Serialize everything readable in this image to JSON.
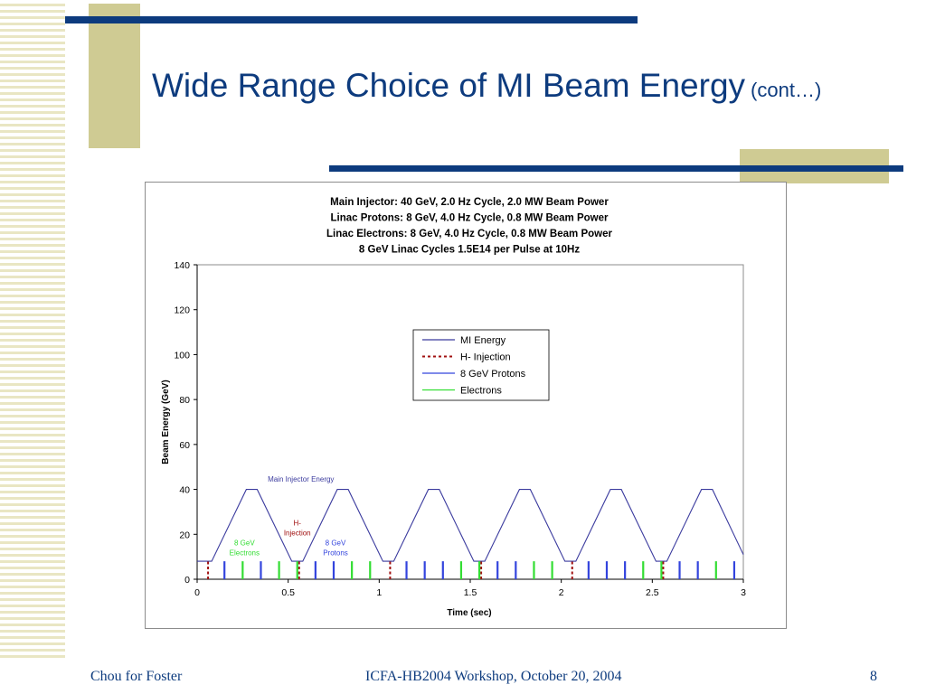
{
  "slide": {
    "title": "Wide Range Choice of MI Beam Energy",
    "title_suffix": "(cont…)",
    "footer_left": "Chou for Foster",
    "footer_center": "ICFA-HB2004 Workshop, October 20, 2004",
    "page_number": "8",
    "colors": {
      "title": "#0d3b7e",
      "accent_bar": "#0d3b7e",
      "accent_block": "#cfcb93",
      "stripes": "#e9e6c3"
    }
  },
  "chart_data": {
    "type": "line",
    "title_lines": [
      "Main  Injector:  40 GeV,  2.0 Hz Cycle,  2.0 MW Beam Power",
      "Linac Protons:    8 GeV,  4.0 Hz Cycle,  0.8 MW Beam Power",
      "Linac Electrons: 8 GeV,  4.0 Hz Cycle,  0.8 MW Beam Power",
      "8 GeV Linac Cycles 1.5E14 per Pulse at 10Hz"
    ],
    "xlabel": "Time (sec)",
    "ylabel": "Beam Energy (GeV)",
    "xlim": [
      0,
      3
    ],
    "ylim": [
      0,
      140
    ],
    "x_ticks": [
      "0",
      "0.5",
      "1",
      "1.5",
      "2",
      "2.5",
      "3"
    ],
    "y_ticks": [
      "0",
      "20",
      "40",
      "60",
      "80",
      "100",
      "120",
      "140"
    ],
    "grid": false,
    "legend": {
      "position": "center",
      "entries": [
        {
          "label": "MI Energy",
          "color": "#3b3b9e",
          "style": "solid"
        },
        {
          "label": "H- Injection",
          "color": "#a01010",
          "style": "dashed"
        },
        {
          "label": "8 GeV Protons",
          "color": "#3344dd",
          "style": "solid"
        },
        {
          "label": "Electrons",
          "color": "#33dd33",
          "style": "solid"
        }
      ]
    },
    "annotations": [
      {
        "text": "Main Injector Energy",
        "color": "#3b3b9e"
      },
      {
        "text": "H-\nInjection",
        "color": "#a01010"
      },
      {
        "text": "8 GeV\nElectrons",
        "color": "#33dd33"
      },
      {
        "text": "8 GeV\nProtons",
        "color": "#3344dd"
      }
    ],
    "series": [
      {
        "name": "MI Energy",
        "color": "#3b3b9e",
        "x": [
          0,
          0.08,
          0.27,
          0.33,
          0.52,
          0.58,
          0.77,
          0.83,
          1.02,
          1.08,
          1.27,
          1.33,
          1.52,
          1.58,
          1.77,
          1.83,
          2.02,
          2.08,
          2.27,
          2.33,
          2.52,
          2.58,
          2.77,
          2.83,
          3.0
        ],
        "y": [
          8,
          8,
          40,
          40,
          8,
          8,
          40,
          40,
          8,
          8,
          40,
          40,
          8,
          8,
          40,
          40,
          8,
          8,
          40,
          40,
          8,
          8,
          40,
          40,
          11
        ]
      },
      {
        "name": "H- Injection",
        "color": "#a01010",
        "style": "dashed",
        "pulses_x": [
          0.06,
          0.56,
          1.06,
          1.56,
          2.06,
          2.56
        ],
        "pulse_height": 8
      },
      {
        "name": "8 GeV Protons",
        "color": "#3344dd",
        "pulses_x": [
          0.15,
          0.35,
          0.65,
          0.75,
          1.15,
          1.25,
          1.35,
          1.65,
          1.75,
          2.15,
          2.25,
          2.35,
          2.65,
          2.75,
          2.95
        ],
        "pulse_height": 8
      },
      {
        "name": "Electrons",
        "color": "#33dd33",
        "pulses_x": [
          0.25,
          0.45,
          0.55,
          0.85,
          0.95,
          1.45,
          1.55,
          1.85,
          1.95,
          2.45,
          2.55,
          2.85
        ],
        "pulse_height": 8
      }
    ]
  }
}
